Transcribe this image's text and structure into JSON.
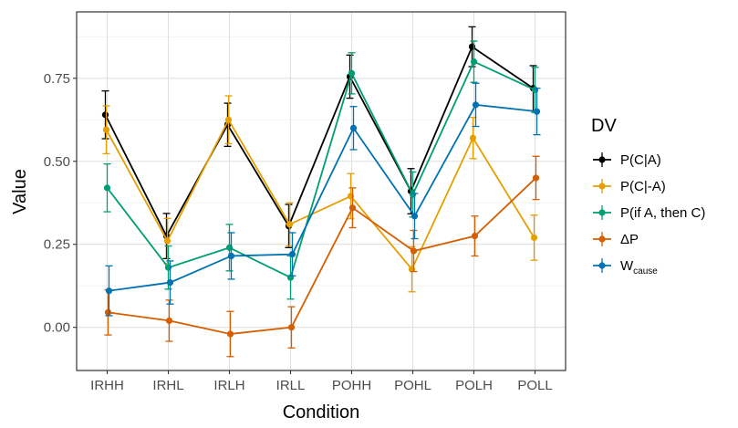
{
  "chart_data": {
    "type": "line",
    "xlabel": "Condition",
    "ylabel": "Value",
    "categories": [
      "IRHH",
      "IRHL",
      "IRLH",
      "IRLL",
      "POHH",
      "POHL",
      "POLH",
      "POLL"
    ],
    "ylim": [
      -0.13,
      0.95
    ],
    "yticks": [
      0.0,
      0.25,
      0.5,
      0.75
    ],
    "ytick_labels": [
      "0.00",
      "0.25",
      "0.50",
      "0.75"
    ],
    "grid": true,
    "legend": {
      "title": "DV",
      "position": "right",
      "entries": [
        {
          "label": "P(C|A)"
        },
        {
          "label": "P(C|-A)"
        },
        {
          "label": "P(if A, then C)"
        },
        {
          "label": "ΔP"
        },
        {
          "label": "W",
          "sub": "cause"
        }
      ]
    },
    "series": [
      {
        "name": "P(C|A)",
        "color": "#000000",
        "values": [
          0.64,
          0.275,
          0.61,
          0.305,
          0.755,
          0.41,
          0.845,
          0.72
        ],
        "errors": [
          0.072,
          0.068,
          0.065,
          0.065,
          0.065,
          0.068,
          0.06,
          0.068
        ]
      },
      {
        "name": "P(C|-A)",
        "color": "#E69F00",
        "values": [
          0.595,
          0.26,
          0.625,
          0.31,
          0.395,
          0.175,
          0.57,
          0.27
        ],
        "errors": [
          0.072,
          0.068,
          0.072,
          0.065,
          0.068,
          0.068,
          0.062,
          0.068
        ]
      },
      {
        "name": "P(if A, then C)",
        "color": "#009E73",
        "values": [
          0.42,
          0.18,
          0.24,
          0.15,
          0.765,
          0.4,
          0.8,
          0.715
        ],
        "errors": [
          0.072,
          0.065,
          0.07,
          0.065,
          0.062,
          0.068,
          0.062,
          0.068
        ]
      },
      {
        "name": "ΔP",
        "color": "#D55E00",
        "values": [
          0.045,
          0.02,
          -0.02,
          0.0,
          0.36,
          0.23,
          0.275,
          0.45
        ],
        "errors": [
          0.068,
          0.062,
          0.068,
          0.062,
          0.06,
          0.062,
          0.06,
          0.065
        ]
      },
      {
        "name": "Wcause",
        "color": "#0072B2",
        "values": [
          0.11,
          0.135,
          0.215,
          0.22,
          0.6,
          0.335,
          0.67,
          0.65
        ],
        "errors": [
          0.075,
          0.065,
          0.07,
          0.065,
          0.065,
          0.068,
          0.065,
          0.07
        ]
      }
    ]
  }
}
